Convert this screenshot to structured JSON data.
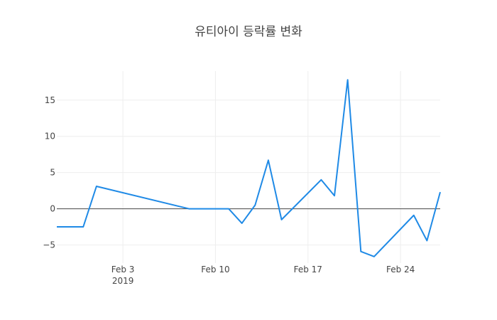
{
  "chart_data": {
    "type": "line",
    "title": "유티아이 등락률 변화",
    "xlabel": "",
    "ylabel": "",
    "x_range": [
      "2019-01-29",
      "2019-02-27"
    ],
    "ylim": [
      -7.5,
      19
    ],
    "grid": true,
    "x_ticks": [
      {
        "date": "2019-02-03",
        "label": "Feb 3",
        "sublabel": "2019"
      },
      {
        "date": "2019-02-10",
        "label": "Feb 10",
        "sublabel": ""
      },
      {
        "date": "2019-02-17",
        "label": "Feb 17",
        "sublabel": ""
      },
      {
        "date": "2019-02-24",
        "label": "Feb 24",
        "sublabel": ""
      }
    ],
    "y_ticks": [
      -5,
      0,
      5,
      10,
      15
    ],
    "series": [
      {
        "color": "#1f8ae6",
        "points": [
          {
            "x": "2019-01-29",
            "y": -2.5
          },
          {
            "x": "2019-01-30",
            "y": -2.5
          },
          {
            "x": "2019-01-31",
            "y": -2.5
          },
          {
            "x": "2019-02-01",
            "y": 3.1
          },
          {
            "x": "2019-02-08",
            "y": 0.0
          },
          {
            "x": "2019-02-11",
            "y": 0.0
          },
          {
            "x": "2019-02-12",
            "y": -2.0
          },
          {
            "x": "2019-02-13",
            "y": 0.5
          },
          {
            "x": "2019-02-14",
            "y": 6.7
          },
          {
            "x": "2019-02-15",
            "y": -1.5
          },
          {
            "x": "2019-02-18",
            "y": 4.0
          },
          {
            "x": "2019-02-19",
            "y": 1.8
          },
          {
            "x": "2019-02-20",
            "y": 17.8
          },
          {
            "x": "2019-02-21",
            "y": -5.9
          },
          {
            "x": "2019-02-22",
            "y": -6.6
          },
          {
            "x": "2019-02-25",
            "y": -0.9
          },
          {
            "x": "2019-02-26",
            "y": -4.4
          },
          {
            "x": "2019-02-27",
            "y": 2.3
          }
        ]
      }
    ]
  }
}
